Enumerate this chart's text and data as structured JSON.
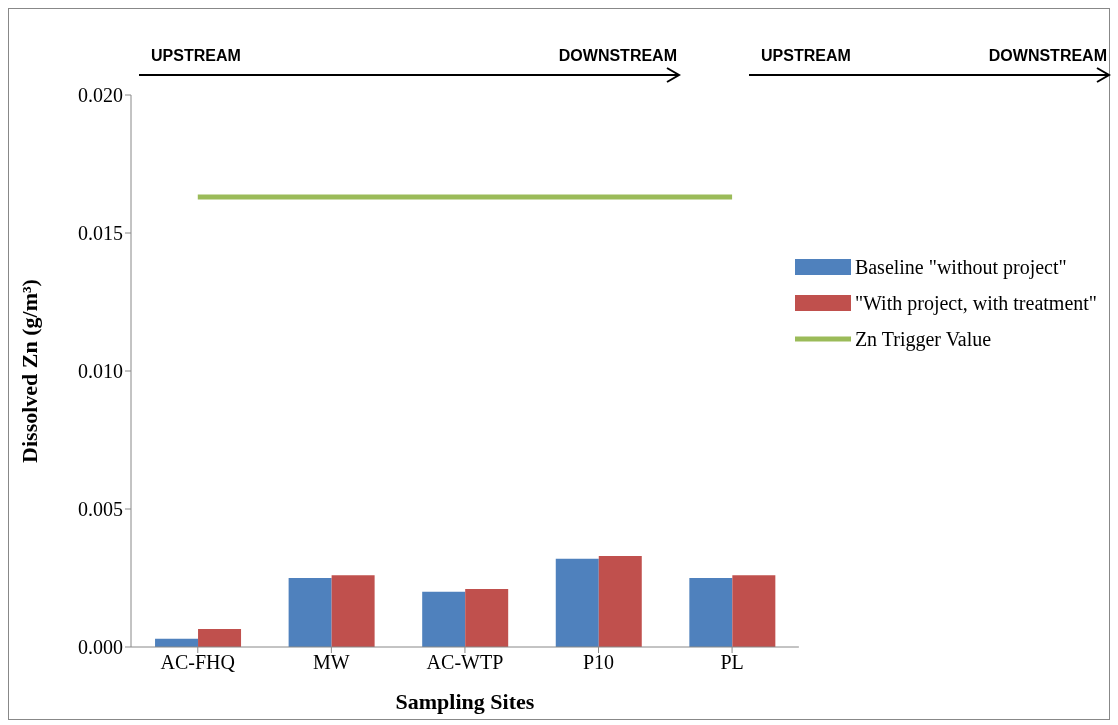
{
  "chart_data": {
    "type": "bar",
    "xlabel": "Sampling Sites",
    "ylabel": "Dissolved Zn (g/m³)",
    "categories": [
      "AC-FHQ",
      "MW",
      "AC-WTP",
      "P10",
      "PL"
    ],
    "series": [
      {
        "name": "Baseline \"without project\"",
        "color": "#4f81bd",
        "values": [
          0.0003,
          0.0025,
          0.002,
          0.0032,
          0.0025
        ]
      },
      {
        "name": "\"With project, with treatment\"",
        "color": "#c0504d",
        "values": [
          0.00065,
          0.0026,
          0.0021,
          0.0033,
          0.0026
        ]
      },
      {
        "name": "Zn Trigger Value",
        "type": "line",
        "color": "#9bbb59",
        "values": [
          0.0163,
          0.0163,
          0.0163,
          0.0163,
          0.0163
        ]
      }
    ],
    "ylim": [
      0,
      0.02
    ],
    "yticks": [
      {
        "value": 0,
        "label": "0.000"
      },
      {
        "value": 0.005,
        "label": "0.005"
      },
      {
        "value": 0.01,
        "label": "0.010"
      },
      {
        "value": 0.015,
        "label": "0.015"
      },
      {
        "value": 0.02,
        "label": "0.020"
      }
    ],
    "grid": false,
    "legend": "right",
    "marker": "none",
    "annotations": [
      "UPSTREAM",
      "DOWNSTREAM",
      "UPSTREAM",
      "DOWNSTREAM"
    ]
  }
}
